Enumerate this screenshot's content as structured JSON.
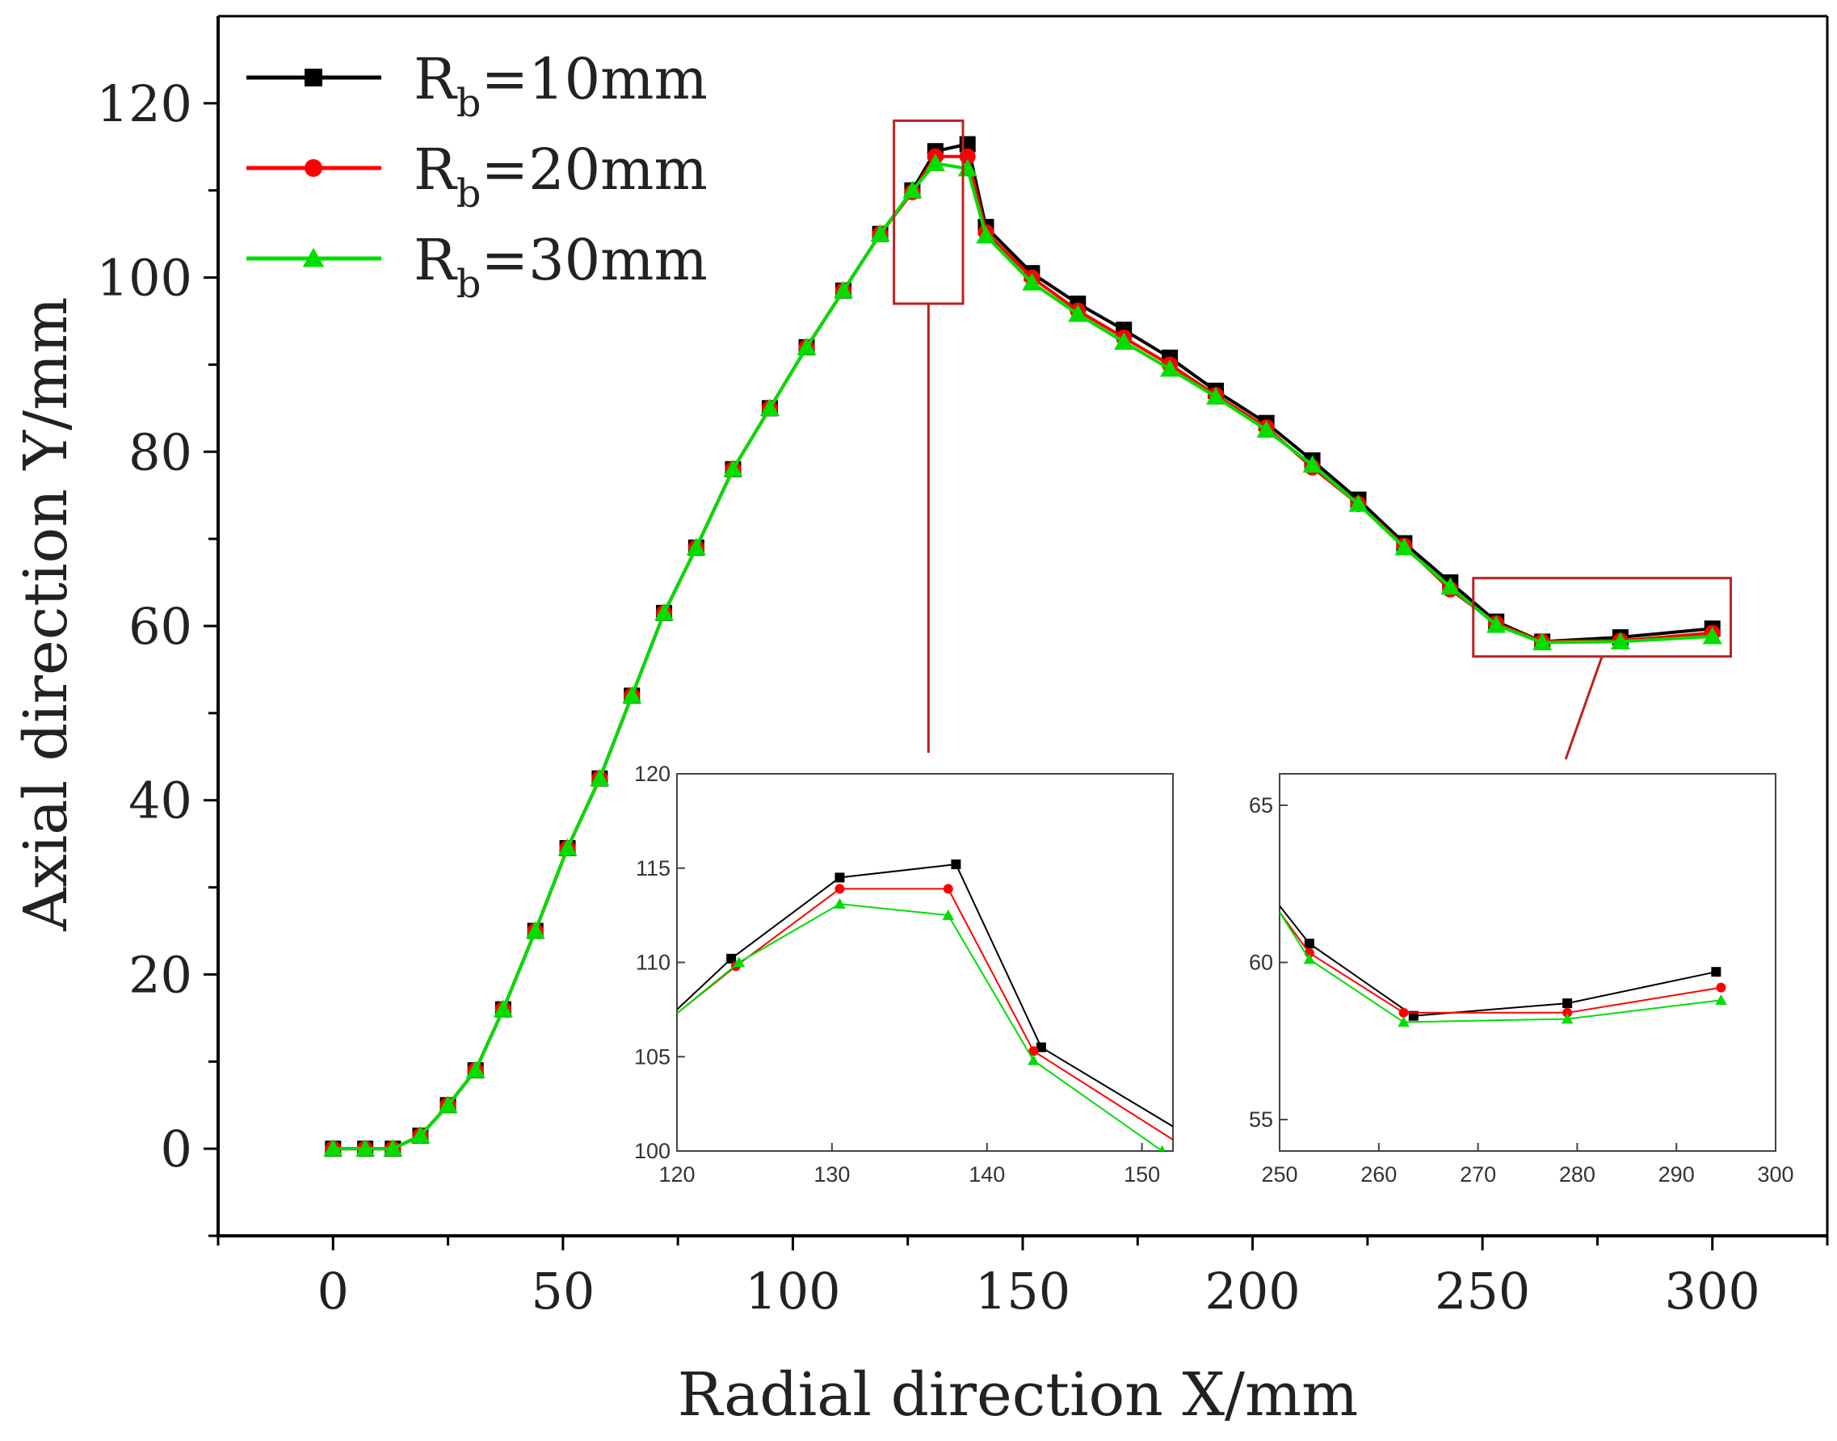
{
  "chart_data": [
    {
      "id": "main",
      "type": "line",
      "xlabel": "Radial direction X/mm",
      "ylabel": "Axial direction Y/mm",
      "xlim": [
        -25,
        325
      ],
      "ylim": [
        -10,
        130
      ],
      "xticks": [
        0,
        50,
        100,
        150,
        200,
        250,
        300
      ],
      "yticks": [
        0,
        20,
        40,
        60,
        80,
        100,
        120
      ],
      "legend_position": "top-left",
      "series": [
        {
          "name": "Rb=10mm",
          "legend_main": "R",
          "legend_sub": "b",
          "legend_rest": "=10mm",
          "color": "#000000",
          "marker": "square",
          "x": [
            0,
            7,
            13,
            19,
            25,
            31,
            37,
            44,
            51,
            58,
            65,
            72,
            79,
            87,
            95,
            103,
            111,
            119,
            126,
            131,
            138,
            142,
            152,
            162,
            172,
            182,
            192,
            203,
            213,
            223,
            233,
            243,
            253,
            263,
            280,
            300
          ],
          "y": [
            0,
            0,
            0,
            1.5,
            5,
            9,
            16,
            25,
            34.5,
            42.5,
            52,
            61.5,
            69,
            78,
            85,
            92,
            98.5,
            105,
            110,
            114.5,
            115.3,
            105.8,
            100.5,
            97,
            94,
            90.8,
            87,
            83.3,
            79,
            74.5,
            69.5,
            65,
            60.5,
            58.2,
            58.7,
            59.7
          ]
        },
        {
          "name": "Rb=20mm",
          "legend_main": "R",
          "legend_sub": "b",
          "legend_rest": "=20mm",
          "color": "#ff0000",
          "marker": "circle",
          "x": [
            0,
            7,
            13,
            19,
            25,
            31,
            37,
            44,
            51,
            58,
            65,
            72,
            79,
            87,
            95,
            103,
            111,
            119,
            126,
            131,
            138,
            142,
            152,
            162,
            172,
            182,
            192,
            203,
            213,
            223,
            233,
            243,
            253,
            263,
            280,
            300
          ],
          "y": [
            0,
            0,
            0,
            1.5,
            5,
            9,
            16,
            25,
            34.5,
            42.5,
            52,
            61.5,
            69,
            78,
            85,
            92,
            98.5,
            105,
            109.8,
            113.9,
            113.9,
            105.2,
            100,
            96.2,
            93.1,
            90,
            86.5,
            82.8,
            78.2,
            74,
            69.2,
            64.2,
            60.3,
            58.2,
            58.3,
            59.2
          ]
        },
        {
          "name": "Rb=30mm",
          "legend_main": "R",
          "legend_sub": "b",
          "legend_rest": "=30mm",
          "color": "#00dd00",
          "marker": "triangle",
          "x": [
            0,
            7,
            13,
            19,
            25,
            31,
            37,
            44,
            51,
            58,
            65,
            72,
            79,
            87,
            95,
            103,
            111,
            119,
            126,
            131,
            138,
            142,
            152,
            162,
            172,
            182,
            192,
            203,
            213,
            223,
            233,
            243,
            253,
            263,
            280,
            300
          ],
          "y": [
            0,
            0,
            0,
            1.5,
            5,
            9,
            16,
            25,
            34.5,
            42.5,
            52,
            61.5,
            69,
            78,
            85,
            92,
            98.5,
            105,
            110,
            113.1,
            112.5,
            104.8,
            99.4,
            95.8,
            92.6,
            89.5,
            86.3,
            82.5,
            78.5,
            74,
            69,
            64.5,
            60.1,
            58.1,
            58.2,
            58.8
          ]
        }
      ],
      "zoom_boxes": [
        {
          "x_range": [
            122,
            137
          ],
          "y_range": [
            97,
            118
          ]
        },
        {
          "x_range": [
            248,
            304
          ],
          "y_range": [
            56.5,
            65.5
          ]
        }
      ]
    },
    {
      "id": "inset-peak",
      "type": "line",
      "xlim": [
        120,
        152
      ],
      "ylim": [
        100,
        120
      ],
      "xticks": [
        120,
        130,
        140,
        150
      ],
      "yticks": [
        100,
        105,
        110,
        115,
        120
      ],
      "series": [
        {
          "name": "Rb=10mm",
          "color": "#000000",
          "marker": "square",
          "x": [
            120,
            123.5,
            130.5,
            138,
            143.5,
            152
          ],
          "y": [
            107.5,
            110.2,
            114.5,
            115.2,
            105.5,
            101.3
          ]
        },
        {
          "name": "Rb=20mm",
          "color": "#ff0000",
          "marker": "circle",
          "x": [
            120,
            123.8,
            130.5,
            137.5,
            143,
            152
          ],
          "y": [
            107.3,
            109.8,
            113.9,
            113.9,
            105.3,
            100.6
          ]
        },
        {
          "name": "Rb=30mm",
          "color": "#00dd00",
          "marker": "triangle",
          "x": [
            120,
            124,
            130.5,
            137.5,
            143,
            151.3
          ],
          "y": [
            107.3,
            110,
            113.1,
            112.5,
            104.8,
            100
          ]
        }
      ]
    },
    {
      "id": "inset-flat",
      "type": "line",
      "xlim": [
        250,
        300
      ],
      "ylim": [
        54,
        66
      ],
      "xticks": [
        250,
        260,
        270,
        280,
        290,
        300
      ],
      "yticks": [
        55,
        60,
        65
      ],
      "series": [
        {
          "name": "Rb=10mm",
          "color": "#000000",
          "marker": "square",
          "x": [
            250,
            253,
            263.5,
            279,
            294
          ],
          "y": [
            61.8,
            60.6,
            58.3,
            58.7,
            59.7
          ]
        },
        {
          "name": "Rb=20mm",
          "color": "#ff0000",
          "marker": "circle",
          "x": [
            250,
            253,
            262.5,
            279,
            294.5
          ],
          "y": [
            61.6,
            60.3,
            58.4,
            58.4,
            59.2
          ]
        },
        {
          "name": "Rb=30mm",
          "color": "#00dd00",
          "marker": "triangle",
          "x": [
            250,
            253,
            262.5,
            279,
            294.5
          ],
          "y": [
            61.6,
            60.1,
            58.1,
            58.2,
            58.8
          ]
        }
      ]
    }
  ]
}
